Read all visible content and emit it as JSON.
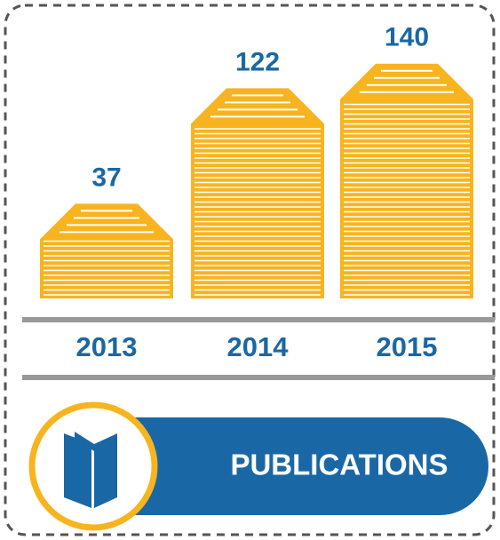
{
  "chart_data": {
    "type": "bar",
    "title": "PUBLICATIONS",
    "categories": [
      "2013",
      "2014",
      "2015"
    ],
    "values": [
      37,
      122,
      140
    ],
    "color": "#f8b41e",
    "label_color": "#1a67a5"
  }
}
